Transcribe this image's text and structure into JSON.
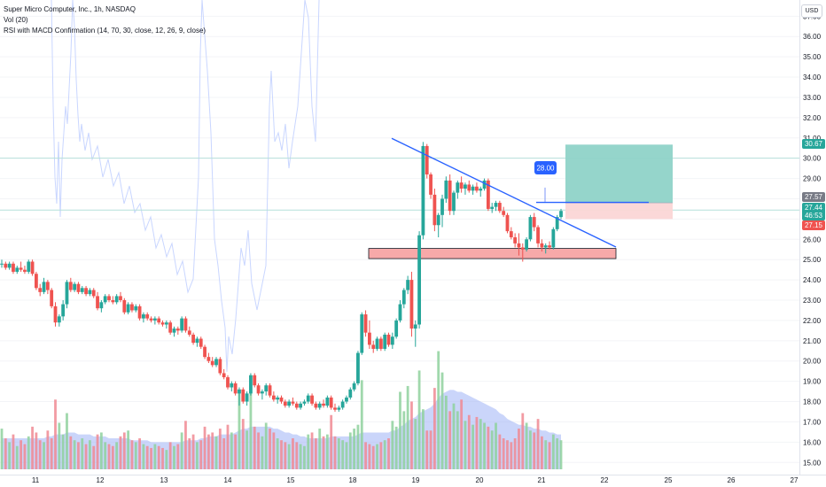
{
  "header": {
    "title": "Super Micro Computer, Inc., 1h, NASDAQ",
    "vol_label": "Vol (20)",
    "indicator_label": "RSI with MACD Confirmation (14, 70, 30, close, 12, 26, 9, close)",
    "currency": "USD"
  },
  "colors": {
    "up": "#26a69a",
    "down": "#ef5350",
    "trendline": "#2962ff",
    "support_fill": "#f7a9a9",
    "support_stroke": "#131722",
    "target_fill": "#8fd3c8",
    "stop_fill": "#fbd6d6",
    "volume_ma": "#9fb3f5",
    "rsi_line": "#c9d6ff",
    "hline": "#b6e0da"
  },
  "chart_data": {
    "type": "candlestick",
    "title": "Super Micro Computer, Inc., 1h, NASDAQ",
    "y_axis": {
      "ylim": [
        14.4,
        37.8
      ],
      "ticks": [
        15.0,
        16.0,
        17.0,
        18.0,
        19.0,
        20.0,
        21.0,
        22.0,
        23.0,
        24.0,
        25.0,
        26.0,
        27.0,
        28.0,
        29.0,
        30.0,
        31.0,
        32.0,
        33.0,
        34.0,
        35.0,
        36.0,
        37.0
      ],
      "position": "right"
    },
    "x_axis": {
      "ticks": [
        "11",
        "12",
        "13",
        "14",
        "15",
        "18",
        "19",
        "20",
        "21",
        "22",
        "25",
        "26",
        "27"
      ]
    },
    "candles": [
      [
        24.8,
        25.0,
        24.6,
        24.8
      ],
      [
        24.8,
        24.9,
        24.5,
        24.6
      ],
      [
        24.6,
        24.9,
        24.5,
        24.8
      ],
      [
        24.8,
        24.9,
        24.3,
        24.4
      ],
      [
        24.4,
        24.7,
        24.3,
        24.6
      ],
      [
        24.6,
        24.9,
        24.4,
        24.5
      ],
      [
        24.5,
        24.7,
        24.3,
        24.4
      ],
      [
        24.4,
        25.0,
        24.3,
        24.9
      ],
      [
        24.9,
        25.0,
        24.2,
        24.3
      ],
      [
        24.3,
        24.4,
        23.5,
        23.6
      ],
      [
        23.6,
        23.8,
        23.2,
        23.4
      ],
      [
        23.4,
        24.1,
        23.3,
        23.9
      ],
      [
        23.9,
        24.0,
        23.3,
        23.5
      ],
      [
        23.5,
        23.6,
        22.6,
        22.7
      ],
      [
        22.7,
        22.9,
        21.7,
        21.9
      ],
      [
        21.9,
        22.3,
        21.7,
        22.2
      ],
      [
        22.2,
        23.0,
        22.0,
        22.8
      ],
      [
        22.8,
        24.0,
        22.6,
        23.9
      ],
      [
        23.9,
        24.1,
        23.4,
        23.5
      ],
      [
        23.5,
        23.9,
        23.4,
        23.8
      ],
      [
        23.8,
        23.9,
        23.3,
        23.4
      ],
      [
        23.4,
        23.7,
        23.3,
        23.6
      ],
      [
        23.6,
        23.7,
        23.2,
        23.3
      ],
      [
        23.3,
        23.6,
        23.2,
        23.5
      ],
      [
        23.5,
        23.6,
        23.1,
        23.2
      ],
      [
        23.2,
        23.4,
        22.5,
        22.6
      ],
      [
        22.6,
        23.0,
        22.4,
        22.9
      ],
      [
        22.9,
        23.3,
        22.8,
        23.2
      ],
      [
        23.2,
        23.3,
        22.9,
        23.0
      ],
      [
        23.0,
        23.2,
        22.8,
        22.9
      ],
      [
        22.9,
        23.3,
        22.8,
        23.2
      ],
      [
        23.2,
        23.4,
        22.9,
        23.0
      ],
      [
        23.0,
        23.1,
        22.3,
        22.4
      ],
      [
        22.4,
        22.9,
        22.3,
        22.8
      ],
      [
        22.8,
        22.9,
        22.4,
        22.5
      ],
      [
        22.5,
        22.8,
        22.4,
        22.7
      ],
      [
        22.7,
        22.8,
        22.0,
        22.1
      ],
      [
        22.1,
        22.4,
        21.9,
        22.3
      ],
      [
        22.3,
        22.4,
        22.0,
        22.1
      ],
      [
        22.1,
        22.2,
        21.9,
        22.0
      ],
      [
        22.0,
        22.2,
        21.8,
        22.1
      ],
      [
        22.1,
        22.2,
        21.8,
        21.9
      ],
      [
        21.9,
        22.0,
        21.7,
        21.8
      ],
      [
        21.8,
        22.0,
        21.6,
        21.9
      ],
      [
        21.9,
        22.0,
        21.3,
        21.4
      ],
      [
        21.4,
        21.7,
        21.2,
        21.6
      ],
      [
        21.6,
        21.7,
        21.3,
        21.5
      ],
      [
        21.5,
        22.2,
        21.4,
        22.1
      ],
      [
        22.1,
        22.2,
        21.4,
        21.5
      ],
      [
        21.5,
        21.7,
        21.2,
        21.3
      ],
      [
        21.3,
        21.4,
        20.8,
        20.9
      ],
      [
        20.9,
        21.2,
        20.7,
        21.1
      ],
      [
        21.1,
        21.2,
        20.6,
        20.7
      ],
      [
        20.7,
        20.8,
        20.1,
        20.2
      ],
      [
        20.2,
        20.4,
        19.9,
        20.0
      ],
      [
        20.0,
        20.2,
        19.7,
        19.8
      ],
      [
        19.8,
        20.2,
        19.7,
        20.1
      ],
      [
        20.1,
        20.2,
        19.3,
        19.4
      ],
      [
        19.4,
        19.6,
        19.1,
        19.2
      ],
      [
        19.2,
        19.3,
        18.6,
        18.7
      ],
      [
        18.7,
        19.0,
        18.5,
        18.9
      ],
      [
        18.9,
        19.0,
        18.3,
        18.4
      ],
      [
        18.4,
        18.7,
        17.8,
        18.6
      ],
      [
        18.6,
        18.7,
        17.9,
        18.0
      ],
      [
        18.0,
        18.5,
        17.8,
        18.4
      ],
      [
        18.4,
        19.4,
        18.3,
        19.3
      ],
      [
        19.3,
        19.4,
        18.7,
        18.8
      ],
      [
        18.8,
        18.9,
        18.3,
        18.4
      ],
      [
        18.4,
        18.6,
        18.1,
        18.5
      ],
      [
        18.5,
        18.9,
        18.3,
        18.8
      ],
      [
        18.8,
        18.9,
        18.2,
        18.3
      ],
      [
        18.3,
        18.5,
        18.0,
        18.1
      ],
      [
        18.1,
        18.3,
        17.9,
        18.2
      ],
      [
        18.2,
        18.3,
        17.9,
        18.0
      ],
      [
        18.0,
        18.1,
        17.7,
        17.8
      ],
      [
        17.8,
        18.1,
        17.7,
        18.0
      ],
      [
        18.0,
        18.2,
        17.8,
        17.9
      ],
      [
        17.9,
        18.0,
        17.6,
        17.7
      ],
      [
        17.7,
        18.0,
        17.6,
        17.9
      ],
      [
        17.9,
        18.1,
        17.8,
        18.0
      ],
      [
        18.0,
        18.4,
        17.9,
        18.3
      ],
      [
        18.3,
        18.4,
        17.8,
        17.9
      ],
      [
        17.9,
        18.0,
        17.6,
        17.7
      ],
      [
        17.7,
        18.0,
        17.6,
        17.9
      ],
      [
        17.9,
        18.1,
        17.7,
        17.8
      ],
      [
        17.8,
        18.3,
        17.7,
        18.2
      ],
      [
        18.2,
        18.3,
        17.6,
        17.7
      ],
      [
        17.7,
        17.9,
        17.5,
        17.6
      ],
      [
        17.6,
        17.8,
        17.5,
        17.7
      ],
      [
        17.7,
        18.1,
        17.6,
        18.0
      ],
      [
        18.0,
        18.3,
        17.9,
        18.2
      ],
      [
        18.2,
        18.7,
        18.1,
        18.6
      ],
      [
        18.6,
        19.0,
        18.5,
        18.9
      ],
      [
        18.9,
        20.5,
        18.8,
        20.4
      ],
      [
        20.4,
        22.4,
        20.3,
        22.3
      ],
      [
        22.3,
        22.5,
        21.2,
        21.4
      ],
      [
        21.4,
        22.0,
        20.6,
        20.8
      ],
      [
        20.8,
        21.0,
        20.4,
        20.6
      ],
      [
        20.6,
        21.2,
        20.5,
        21.1
      ],
      [
        21.1,
        21.2,
        20.5,
        20.6
      ],
      [
        20.6,
        21.4,
        20.5,
        21.3
      ],
      [
        21.3,
        21.4,
        20.7,
        20.8
      ],
      [
        20.8,
        21.4,
        20.6,
        21.2
      ],
      [
        21.2,
        22.1,
        21.1,
        22.0
      ],
      [
        22.0,
        23.0,
        21.9,
        22.8
      ],
      [
        22.8,
        23.6,
        22.6,
        23.5
      ],
      [
        23.5,
        24.2,
        23.3,
        24.0
      ],
      [
        24.0,
        24.4,
        21.2,
        21.6
      ],
      [
        21.6,
        22.0,
        20.7,
        21.8
      ],
      [
        21.8,
        26.4,
        21.6,
        26.2
      ],
      [
        26.2,
        30.8,
        26.0,
        30.6
      ],
      [
        30.6,
        30.7,
        29.0,
        29.2
      ],
      [
        29.2,
        29.3,
        28.0,
        28.2
      ],
      [
        28.2,
        28.5,
        26.4,
        26.7
      ],
      [
        26.7,
        27.3,
        26.1,
        27.2
      ],
      [
        27.2,
        28.2,
        26.6,
        28.0
      ],
      [
        28.0,
        29.1,
        27.8,
        28.9
      ],
      [
        28.9,
        29.2,
        27.2,
        27.4
      ],
      [
        27.4,
        28.4,
        27.2,
        28.3
      ],
      [
        28.3,
        28.9,
        28.0,
        28.8
      ],
      [
        28.8,
        29.1,
        28.3,
        28.5
      ],
      [
        28.5,
        28.8,
        28.2,
        28.7
      ],
      [
        28.7,
        28.9,
        28.3,
        28.4
      ],
      [
        28.4,
        28.7,
        28.2,
        28.6
      ],
      [
        28.6,
        28.8,
        28.3,
        28.4
      ],
      [
        28.4,
        28.6,
        28.1,
        28.5
      ],
      [
        28.5,
        29.0,
        28.4,
        28.9
      ],
      [
        28.9,
        29.0,
        27.4,
        27.5
      ],
      [
        27.5,
        27.8,
        27.3,
        27.6
      ],
      [
        27.6,
        27.9,
        27.4,
        27.8
      ],
      [
        27.8,
        27.9,
        27.3,
        27.4
      ],
      [
        27.4,
        27.6,
        27.1,
        27.2
      ],
      [
        27.2,
        27.3,
        26.3,
        26.4
      ],
      [
        26.4,
        26.6,
        26.0,
        26.1
      ],
      [
        26.1,
        26.3,
        25.6,
        25.8
      ],
      [
        25.8,
        26.3,
        25.2,
        25.6
      ],
      [
        25.6,
        25.8,
        24.9,
        25.5
      ],
      [
        25.5,
        26.1,
        25.4,
        26.0
      ],
      [
        26.0,
        27.2,
        25.9,
        27.1
      ],
      [
        27.1,
        27.3,
        26.4,
        26.6
      ],
      [
        26.6,
        26.7,
        25.6,
        25.8
      ],
      [
        25.8,
        26.0,
        25.4,
        25.6
      ],
      [
        25.6,
        25.8,
        25.3,
        25.7
      ],
      [
        25.7,
        25.9,
        25.5,
        25.6
      ],
      [
        25.6,
        26.6,
        25.5,
        26.5
      ],
      [
        26.5,
        27.2,
        26.4,
        27.1
      ],
      [
        27.1,
        27.5,
        27.0,
        27.4
      ]
    ],
    "volume": [
      2.1,
      1.6,
      1.4,
      1.8,
      1.2,
      1.5,
      1.3,
      1.7,
      2.2,
      1.9,
      1.5,
      1.4,
      2.0,
      1.6,
      3.6,
      2.4,
      1.8,
      2.9,
      1.7,
      1.5,
      1.4,
      1.6,
      1.3,
      1.5,
      1.2,
      1.8,
      1.9,
      1.4,
      1.3,
      1.2,
      1.4,
      1.7,
      1.9,
      2.0,
      1.5,
      1.4,
      1.6,
      1.3,
      1.2,
      1.1,
      1.3,
      1.2,
      1.1,
      1.0,
      1.4,
      1.2,
      1.3,
      1.9,
      2.5,
      1.6,
      1.8,
      1.4,
      1.5,
      2.2,
      1.8,
      1.9,
      1.7,
      2.1,
      1.6,
      2.3,
      1.9,
      1.8,
      4.1,
      2.6,
      2.0,
      4.6,
      2.2,
      1.9,
      1.7,
      2.4,
      2.1,
      1.9,
      1.6,
      1.5,
      1.4,
      1.3,
      1.6,
      1.4,
      1.3,
      1.2,
      1.8,
      1.9,
      1.6,
      2.1,
      1.7,
      1.8,
      2.8,
      1.7,
      1.6,
      1.5,
      1.4,
      1.9,
      2.1,
      2.3,
      4.6,
      1.4,
      1.3,
      1.2,
      1.3,
      1.4,
      1.5,
      1.6,
      2.5,
      2.2,
      4.0,
      3.0,
      4.3,
      3.5,
      2.6,
      5.1,
      3.1,
      2.0,
      2.0,
      4.2,
      6.1,
      5.0,
      3.8,
      3.0,
      3.4,
      3.0,
      3.6,
      2.5,
      2.8,
      2.3,
      2.7,
      2.6,
      2.4,
      2.2,
      2.0,
      2.4,
      1.8,
      1.6,
      1.5,
      1.4,
      1.6,
      2.1,
      2.9,
      2.4,
      2.0,
      1.9,
      2.6,
      1.7,
      1.5,
      1.4,
      1.8,
      1.6,
      1.5
    ],
    "volume_ma": [
      1.6,
      1.6,
      1.6,
      1.6,
      1.6,
      1.6,
      1.6,
      1.6,
      1.6,
      1.6,
      1.6,
      1.6,
      1.7,
      1.7,
      1.8,
      1.8,
      1.8,
      1.9,
      1.9,
      1.9,
      1.8,
      1.8,
      1.8,
      1.8,
      1.7,
      1.7,
      1.7,
      1.7,
      1.6,
      1.6,
      1.6,
      1.6,
      1.6,
      1.6,
      1.5,
      1.5,
      1.5,
      1.5,
      1.5,
      1.4,
      1.4,
      1.4,
      1.4,
      1.4,
      1.4,
      1.4,
      1.4,
      1.4,
      1.5,
      1.5,
      1.5,
      1.5,
      1.6,
      1.6,
      1.7,
      1.7,
      1.7,
      1.8,
      1.8,
      1.8,
      1.8,
      1.9,
      2.0,
      2.1,
      2.1,
      2.2,
      2.2,
      2.2,
      2.2,
      2.2,
      2.2,
      2.1,
      2.1,
      2.0,
      1.9,
      1.9,
      1.8,
      1.8,
      1.7,
      1.7,
      1.6,
      1.6,
      1.6,
      1.6,
      1.6,
      1.6,
      1.7,
      1.7,
      1.7,
      1.7,
      1.7,
      1.7,
      1.7,
      1.8,
      1.9,
      1.9,
      1.9,
      1.9,
      1.9,
      1.9,
      1.9,
      1.9,
      2.0,
      2.0,
      2.2,
      2.3,
      2.5,
      2.6,
      2.7,
      2.9,
      3.0,
      3.1,
      3.2,
      3.4,
      3.7,
      3.9,
      4.0,
      4.1,
      4.1,
      4.0,
      4.0,
      3.9,
      3.8,
      3.7,
      3.6,
      3.5,
      3.4,
      3.3,
      3.2,
      3.1,
      2.9,
      2.8,
      2.6,
      2.5,
      2.4,
      2.3,
      2.3,
      2.2,
      2.2,
      2.1,
      2.1,
      2.0,
      2.0,
      1.9,
      1.9,
      1.8,
      1.8
    ]
  },
  "annotations": {
    "alert_label": "28.00",
    "target_price": "30.67",
    "hline_upper_price": 30.0,
    "hline_lower_price": 27.44
  },
  "price_scale_tags": {
    "target": "30.67",
    "entry": "27.57",
    "last": "27.44",
    "countdown": "46:53",
    "stop": "27.15"
  }
}
